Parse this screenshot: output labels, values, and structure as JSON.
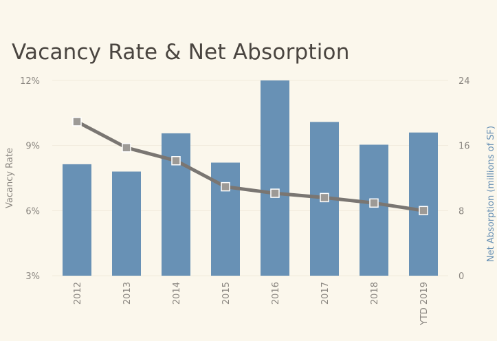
{
  "chart_data": {
    "type": "bar",
    "title": "Vacancy Rate & Net Absorption",
    "categories": [
      "2012",
      "2013",
      "2014",
      "2015",
      "2016",
      "2017",
      "2018",
      "YTD 2019"
    ],
    "left_axis": {
      "label": "Vacancy Rate",
      "ylim": [
        3,
        12
      ],
      "ticks": [
        "3%",
        "6%",
        "9%",
        "12%"
      ],
      "tick_values": [
        3,
        6,
        9,
        12
      ]
    },
    "right_axis": {
      "label": "Net Absorption (millions of SF)",
      "ylim": [
        0,
        24
      ],
      "ticks": [
        "0",
        "8",
        "16",
        "24"
      ],
      "tick_values": [
        0,
        8,
        16,
        24
      ]
    },
    "series": [
      {
        "type": "bar",
        "axis": "right",
        "values": [
          13.7,
          12.8,
          17.5,
          13.9,
          24.0,
          18.9,
          16.1,
          17.6
        ]
      },
      {
        "type": "line",
        "axis": "left",
        "values": [
          10.1,
          8.9,
          8.3,
          7.1,
          6.8,
          6.6,
          6.35,
          6.0
        ]
      }
    ],
    "colors": {
      "bar": "#6891b5",
      "line": "#7a7672",
      "marker": "#9d9a96",
      "background": "#fbf7ec",
      "title": "#4a4540",
      "right_axis_title": "#6891b5",
      "left_axis_title": "#8a8680"
    },
    "grid": false
  }
}
